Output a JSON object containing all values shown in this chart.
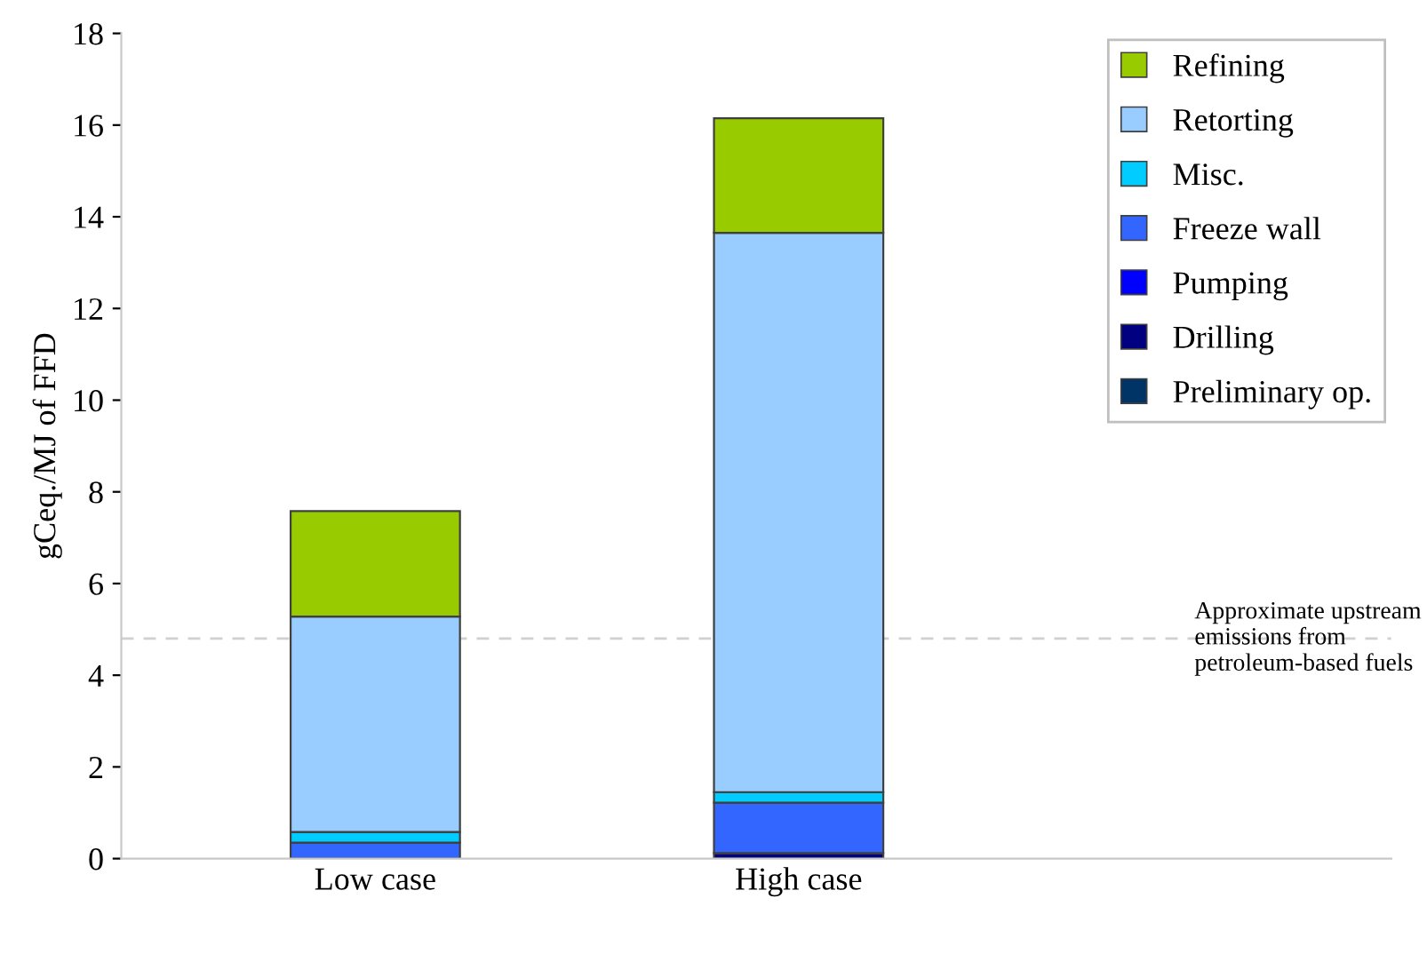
{
  "chart_data": {
    "type": "bar",
    "stacked": true,
    "ylabel": "gCeq./MJ of FFD",
    "categories": [
      "Low case",
      "High case"
    ],
    "series": [
      {
        "name": "Preliminary op.",
        "color": "#003366",
        "values": [
          0,
          null
        ]
      },
      {
        "name": "Drilling",
        "color": "#000080",
        "values": [
          null,
          0.12
        ]
      },
      {
        "name": "Pumping",
        "color": "#0000ff",
        "values": [
          0,
          0
        ]
      },
      {
        "name": "Freeze wall",
        "color": "#3366ff",
        "values": [
          0.35,
          1.1
        ]
      },
      {
        "name": "Misc.",
        "color": "#00ccff",
        "values": [
          0.23,
          0.23
        ]
      },
      {
        "name": "Retorting",
        "color": "#99ccff",
        "values": [
          4.7,
          12.2
        ]
      },
      {
        "name": "Refining",
        "color": "#99cc00",
        "values": [
          2.3,
          2.5
        ]
      }
    ],
    "ylim": [
      0,
      18
    ],
    "yticks": [
      0,
      2,
      4,
      6,
      8,
      10,
      12,
      14,
      16,
      18
    ],
    "grid": false,
    "legend": "top right",
    "ref_lines": [
      {
        "axis": "y",
        "value": 4.8,
        "label": "Approximate upstream emissions from petroleum-based fuels",
        "color": "#d0d0d0",
        "line_style": "dashed"
      }
    ]
  }
}
